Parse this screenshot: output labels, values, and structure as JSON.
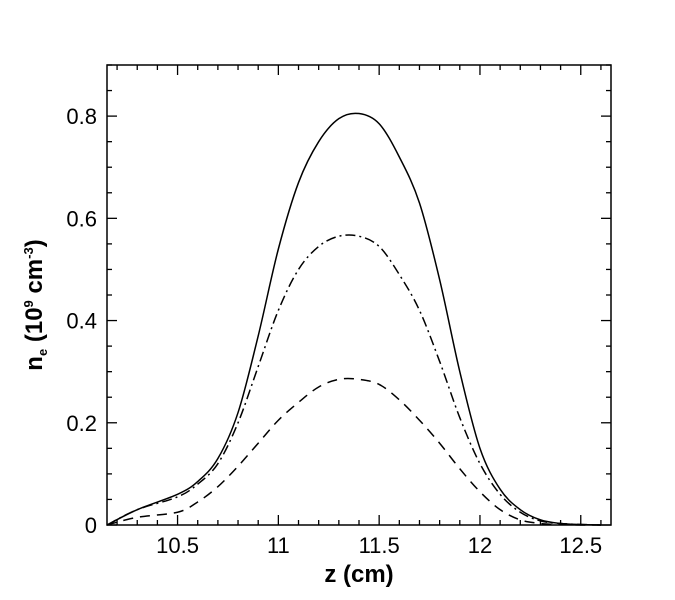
{
  "chart_data": {
    "type": "line",
    "xlabel": "z (cm)",
    "ylabel": {
      "base": "n",
      "sub": "e",
      "pre": " (10",
      "sup1": "9",
      "mid": " cm",
      "sup2": "-3",
      "post": ")"
    },
    "xlim": [
      10.15,
      12.65
    ],
    "ylim": [
      0,
      0.9
    ],
    "x_ticks": [
      10.5,
      11,
      11.5,
      12,
      12.5
    ],
    "x_tick_labels": [
      "10.5",
      "11",
      "11.5",
      "12",
      "12.5"
    ],
    "y_ticks": [
      0,
      0.2,
      0.4,
      0.6,
      0.8
    ],
    "y_tick_labels": [
      "0",
      "0.2",
      "0.4",
      "0.6",
      "0.8"
    ],
    "grid": false,
    "legend": "none",
    "series": [
      {
        "style": "solid",
        "color": "#000000",
        "x": [
          10.15,
          10.3,
          10.5,
          10.6,
          10.7,
          10.8,
          10.9,
          11.0,
          11.1,
          11.2,
          11.3,
          11.4,
          11.5,
          11.6,
          11.7,
          11.8,
          11.9,
          12.0,
          12.1,
          12.2,
          12.3,
          12.4,
          12.5,
          12.6
        ],
        "y": [
          0.0,
          0.03,
          0.06,
          0.085,
          0.13,
          0.22,
          0.37,
          0.54,
          0.67,
          0.75,
          0.795,
          0.805,
          0.785,
          0.72,
          0.63,
          0.48,
          0.3,
          0.15,
          0.07,
          0.03,
          0.01,
          0.003,
          0.001,
          0.0
        ]
      },
      {
        "style": "dashdot",
        "color": "#000000",
        "x": [
          10.15,
          10.3,
          10.5,
          10.6,
          10.7,
          10.8,
          10.9,
          11.0,
          11.1,
          11.2,
          11.3,
          11.4,
          11.5,
          11.6,
          11.7,
          11.8,
          11.9,
          12.0,
          12.1,
          12.2,
          12.3,
          12.4,
          12.5,
          12.6
        ],
        "y": [
          0.0,
          0.03,
          0.055,
          0.08,
          0.12,
          0.2,
          0.31,
          0.42,
          0.5,
          0.545,
          0.565,
          0.565,
          0.545,
          0.49,
          0.42,
          0.32,
          0.21,
          0.12,
          0.06,
          0.025,
          0.008,
          0.003,
          0.001,
          0.0
        ]
      },
      {
        "style": "dashed",
        "color": "#000000",
        "x": [
          10.15,
          10.3,
          10.5,
          10.6,
          10.7,
          10.8,
          10.9,
          11.0,
          11.1,
          11.2,
          11.3,
          11.4,
          11.5,
          11.6,
          11.7,
          11.8,
          11.9,
          12.0,
          12.1,
          12.2,
          12.3,
          12.4,
          12.5,
          12.6
        ],
        "y": [
          0.0,
          0.015,
          0.025,
          0.045,
          0.075,
          0.115,
          0.16,
          0.205,
          0.24,
          0.27,
          0.285,
          0.285,
          0.275,
          0.245,
          0.205,
          0.16,
          0.11,
          0.065,
          0.03,
          0.01,
          0.003,
          0.001,
          0.0,
          0.0
        ]
      }
    ]
  }
}
